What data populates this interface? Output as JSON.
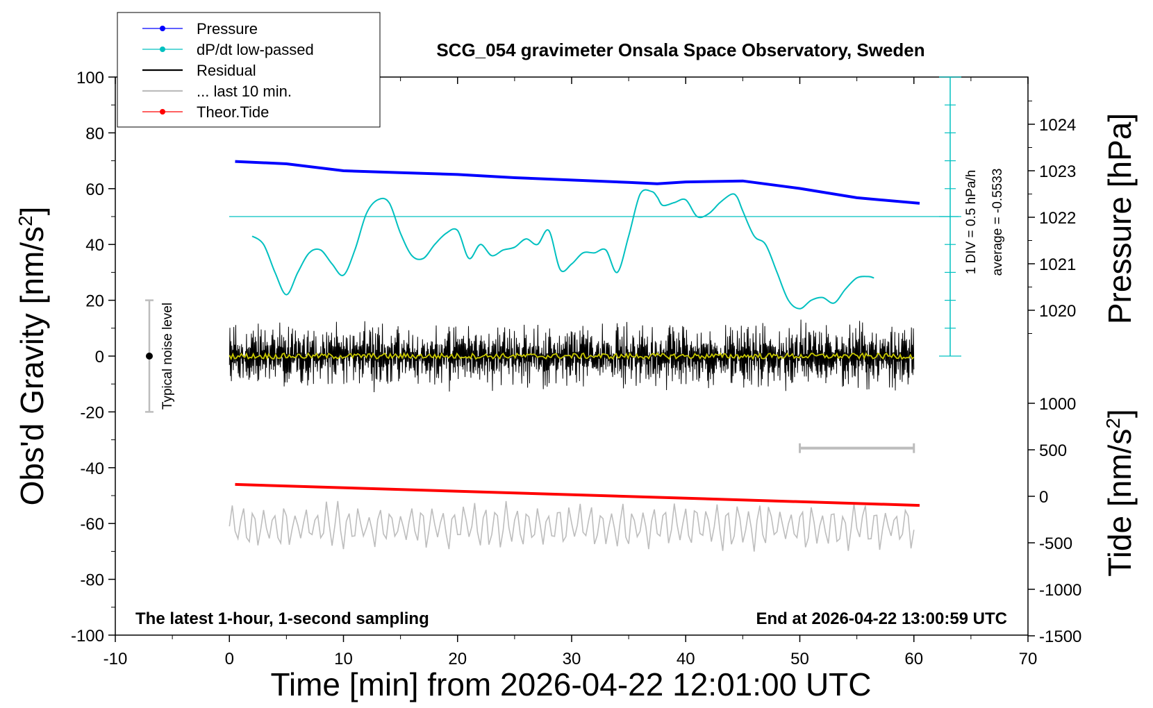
{
  "chart_data": {
    "type": "line",
    "title": "SCG_054 gravimeter Onsala Space Observatory, Sweden",
    "xlabel": "Time [min] from 2026-04-22 12:01:00 UTC",
    "ylabel": "Obs'd Gravity [nm/s",
    "ylabel_sup": "2",
    "ylabel_end": "]",
    "right_pressure_label": "Pressure [hPa]",
    "right_tide_label": "Tide [nm/s",
    "right_tide_sup": "2",
    "right_tide_end": "]",
    "xlim": [
      -10,
      70
    ],
    "ylim": [
      -100,
      100
    ],
    "x_ticks": [
      "-10",
      "0",
      "10",
      "20",
      "30",
      "40",
      "50",
      "60",
      "70"
    ],
    "y_ticks": [
      "100",
      "80",
      "60",
      "40",
      "20",
      "0",
      "-20",
      "-40",
      "-60",
      "-80",
      "-100"
    ],
    "pressure_ticks": [
      "1024",
      "1023",
      "1022",
      "1021",
      "1020"
    ],
    "pressure_tick_values": [
      1024,
      1023,
      1022,
      1021,
      1020
    ],
    "tide_ticks": [
      "1000",
      "500",
      "0",
      "-500",
      "-1000",
      "-1500"
    ],
    "tide_tick_values": [
      1000,
      500,
      0,
      -500,
      -1000,
      -1500
    ],
    "legend": [
      {
        "label": "Pressure",
        "color": "#0000ff",
        "marker": true
      },
      {
        "label": "dP/dt low-passed",
        "color": "#00c0c0",
        "marker": true
      },
      {
        "label": "Residual",
        "color": "#000000",
        "marker": false
      },
      {
        "label": "... last 10 min.",
        "color": "#bdbdbd",
        "marker": false
      },
      {
        "label": "Theor.Tide",
        "color": "#ff0000",
        "marker": true
      }
    ],
    "legend_position": "top-left",
    "noise_label": "Typical noise level",
    "noise_range": [
      -20,
      20
    ],
    "dpdt_scale_label": "1 DIV = 0.5 hPa/h",
    "dpdt_average_label": "average = -0.5533",
    "dpdt_zero_level": 50,
    "footer_left": "The latest 1-hour, 1-second sampling",
    "footer_right": "End at 2026-04-22 13:00:59 UTC",
    "last10_bar": [
      50,
      60
    ],
    "series": [
      {
        "name": "Pressure",
        "color": "#0000ff",
        "x": [
          0.5,
          5,
          10,
          15,
          20,
          25,
          30,
          35,
          37.5,
          40,
          45,
          50,
          55,
          60.5
        ],
        "values": [
          1023.2,
          1023.15,
          1023.0,
          1022.96,
          1022.92,
          1022.85,
          1022.8,
          1022.75,
          1022.72,
          1022.76,
          1022.78,
          1022.62,
          1022.42,
          1022.3
        ]
      },
      {
        "name": "dP/dt low-passed",
        "color": "#00c0c0",
        "x": [
          2,
          3,
          4,
          5,
          6,
          7,
          8,
          9,
          10,
          11,
          12,
          13,
          14,
          15,
          16,
          17,
          18,
          19,
          20,
          21,
          22,
          23,
          24,
          25,
          26,
          27,
          28,
          29,
          30,
          31,
          32,
          33,
          34,
          35,
          36,
          37,
          37.5,
          38,
          39,
          40,
          41,
          42,
          43,
          44,
          44.5,
          45,
          46,
          47,
          48,
          49,
          50,
          51,
          52,
          53,
          54,
          55,
          56,
          56.5
        ],
        "values": [
          43,
          40,
          30,
          22,
          30,
          37,
          38,
          33,
          29,
          38,
          51,
          56,
          55,
          44,
          36,
          35,
          40,
          44,
          45,
          35,
          40,
          36,
          38,
          39,
          42,
          40,
          45,
          31,
          33,
          37,
          37,
          38,
          30,
          43,
          58,
          59,
          57,
          54,
          55,
          56,
          50,
          51,
          55,
          58,
          57,
          52,
          43,
          40,
          30,
          20,
          17,
          20,
          21,
          19,
          24,
          28,
          28.5,
          28
        ]
      },
      {
        "name": "Residual",
        "color": "#000000",
        "x_range": [
          0,
          60
        ],
        "mean": 0,
        "amplitude": 9
      },
      {
        "name": "... last 10 min.",
        "color": "#bdbdbd",
        "x_range": [
          0,
          60
        ],
        "mean": -61,
        "amplitude": 8
      },
      {
        "name": "Theor.Tide",
        "color": "#ff0000",
        "x": [
          0.5,
          60.5
        ],
        "values": [
          -46,
          -53.5
        ]
      },
      {
        "name": "Residual smoothed",
        "color": "#c8c800",
        "x_range": [
          0,
          60
        ],
        "mean": 0,
        "amplitude": 1
      }
    ]
  }
}
